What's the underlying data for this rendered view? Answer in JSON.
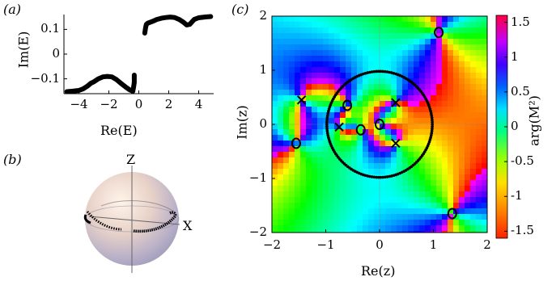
{
  "panel_a": {
    "label": "(a)",
    "xlabel": "Re(E)",
    "ylabel": "Im(E)",
    "xticks": [
      "−4",
      "−2",
      "0",
      "2",
      "4"
    ],
    "yticks": [
      "0.1",
      "0",
      "−0.1"
    ]
  },
  "panel_b": {
    "label": "(b)",
    "z_axis_label": "Z",
    "x_axis_label": "X"
  },
  "panel_c": {
    "label": "(c)",
    "xlabel": "Re(z)",
    "ylabel": "Im(z)",
    "xticks": [
      "−2",
      "−1",
      "0",
      "1",
      "2"
    ],
    "yticks": [
      "2",
      "1",
      "0",
      "−1",
      "−2"
    ],
    "colorbar_label": "arg(M²)",
    "colorbar_ticks": [
      "1.5",
      "1",
      "0.5",
      "0",
      "-0.5",
      "-1",
      "-1.5"
    ],
    "colors": {
      "hue_map": "rainbow (arg)",
      "marker": "#000000"
    }
  },
  "chart_data": [
    {
      "type": "scatter",
      "panel": "a",
      "xlabel": "Re(E)",
      "ylabel": "Im(E)",
      "xlim": [
        -5,
        5
      ],
      "ylim": [
        -0.16,
        0.16
      ],
      "series": [
        {
          "x": [
            -4.8,
            -4.4,
            -4.0,
            -3.7,
            -3.4,
            -3.2,
            -3.0,
            -2.7,
            -2.4,
            -2.1,
            -1.8,
            -1.5,
            -1.2,
            -0.9,
            -0.6,
            -0.4
          ],
          "y": [
            -0.152,
            -0.15,
            -0.147,
            -0.14,
            -0.128,
            -0.118,
            -0.112,
            -0.1,
            -0.092,
            -0.09,
            -0.092,
            -0.103,
            -0.118,
            -0.132,
            -0.145,
            -0.15
          ]
        },
        {
          "x": [
            -0.4,
            -0.35,
            -0.3,
            -0.3
          ],
          "y": [
            -0.15,
            -0.135,
            -0.115,
            -0.085
          ]
        },
        {
          "x": [
            0.4,
            0.45,
            0.5,
            0.6
          ],
          "y": [
            0.085,
            0.105,
            0.12,
            0.125
          ]
        },
        {
          "x": [
            0.6,
            0.9,
            1.2,
            1.5,
            1.8,
            2.1,
            2.4,
            2.7,
            3.0,
            3.2,
            3.4,
            3.7,
            4.0,
            4.4,
            4.8
          ],
          "y": [
            0.125,
            0.132,
            0.14,
            0.145,
            0.148,
            0.15,
            0.148,
            0.14,
            0.128,
            0.118,
            0.12,
            0.14,
            0.147,
            0.15,
            0.152
          ]
        }
      ]
    },
    {
      "type": "scatter",
      "panel": "c",
      "xlabel": "Re(z)",
      "ylabel": "Im(z)",
      "xlim": [
        -2,
        2
      ],
      "ylim": [
        -2,
        2
      ],
      "circle": {
        "center": [
          0,
          0
        ],
        "radius": 0.98
      },
      "zeros_O": [
        [
          1.1,
          1.7
        ],
        [
          1.35,
          -1.65
        ],
        [
          -1.55,
          -0.35
        ],
        [
          -0.6,
          0.35
        ],
        [
          -0.35,
          -0.1
        ],
        [
          0.0,
          0.0
        ]
      ],
      "poles_X": [
        [
          -1.45,
          0.45
        ],
        [
          0.3,
          0.4
        ],
        [
          -0.75,
          -0.05
        ],
        [
          0.3,
          -0.35
        ]
      ],
      "colorbar": {
        "label": "arg(M²)",
        "range": [
          -1.5,
          1.5
        ]
      }
    }
  ]
}
